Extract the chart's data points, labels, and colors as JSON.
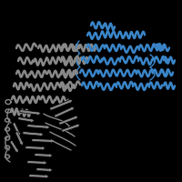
{
  "background_color": "#000000",
  "figsize": [
    2.0,
    2.0
  ],
  "dpi": 100,
  "protein_color": "#888888",
  "domain_color": "#3a85c8",
  "outline_color": "#000000"
}
